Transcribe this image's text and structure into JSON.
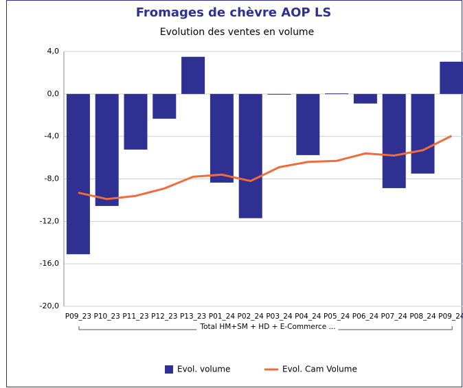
{
  "chart_data": {
    "type": "bar",
    "title": "Fromages de chèvre AOP LS",
    "subtitle": "Evolution des ventes en volume",
    "group_label": "Total HM+SM + HD + E-Commerce ...",
    "categories": [
      "P09_23",
      "P10_23",
      "P11_23",
      "P12_23",
      "P13_23",
      "P01_24",
      "P02_24",
      "P03_24",
      "P04_24",
      "P05_24",
      "P06_24",
      "P07_24",
      "P08_24",
      "P09_24"
    ],
    "series": [
      {
        "name": "Evol. volume",
        "type": "bar",
        "color": "#2e3192",
        "values": [
          -15.1,
          -10.55,
          -5.24,
          -2.33,
          3.5,
          -8.35,
          -11.7,
          -0.05,
          -5.76,
          0.05,
          -0.9,
          -8.87,
          -7.5,
          3.04
        ]
      },
      {
        "name": "Evol. Cam Volume",
        "type": "line",
        "color": "#f26b3a",
        "values": [
          -9.3,
          -9.9,
          -9.6,
          -8.9,
          -7.8,
          -7.6,
          -8.2,
          -6.9,
          -6.4,
          -6.3,
          -5.6,
          -5.8,
          -5.3,
          -3.95
        ]
      }
    ],
    "ylim": [
      -20,
      4
    ],
    "yticks": [
      {
        "value": -20,
        "label": "-20,0"
      },
      {
        "value": -16,
        "label": "-16,0"
      },
      {
        "value": -12,
        "label": "-12,0"
      },
      {
        "value": -8,
        "label": "-8,0"
      },
      {
        "value": -4,
        "label": "-4,0"
      },
      {
        "value": 0,
        "label": "0,0"
      },
      {
        "value": 4,
        "label": "4,0"
      }
    ],
    "grid": true,
    "legend": "bottom"
  }
}
